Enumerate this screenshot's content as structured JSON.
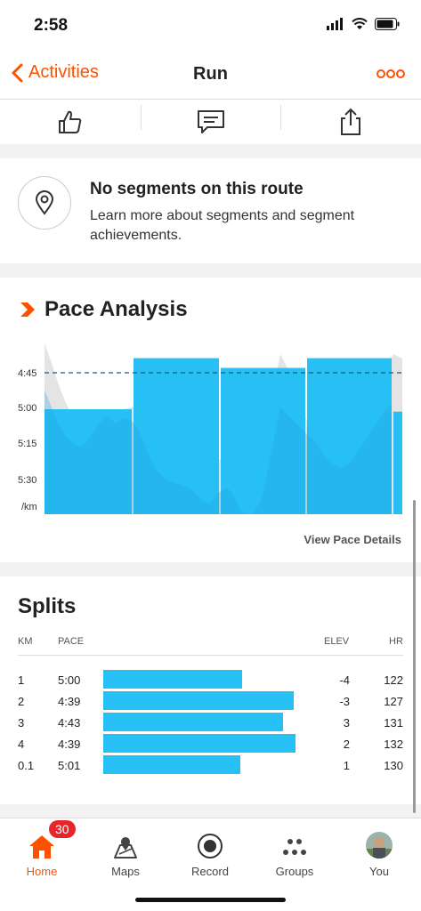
{
  "status_bar": {
    "time": "2:58"
  },
  "nav": {
    "back_label": "Activities",
    "title": "Run"
  },
  "segments": {
    "heading": "No segments on this route",
    "body": "Learn more about segments and segment achievements."
  },
  "pace_analysis": {
    "heading": "Pace Analysis",
    "view_details_label": "View Pace Details"
  },
  "chart_data": {
    "type": "bar",
    "title": "Pace Analysis",
    "y_tick_labels": [
      "4:45",
      "5:00",
      "5:15",
      "5:30",
      "/km"
    ],
    "average_pace_line": "4:45",
    "categories": [
      "1",
      "2",
      "3",
      "4",
      "0.1"
    ],
    "series": [
      {
        "values": [
          "5:00",
          "4:39",
          "4:43",
          "4:39",
          "5:01"
        ]
      }
    ],
    "colors": {
      "bars": "#26c0f5",
      "elevation": "#e4e4e4",
      "avg_line": "#1d5a7a"
    }
  },
  "splits": {
    "heading": "Splits",
    "columns": {
      "km": "KM",
      "pace": "PACE",
      "elev": "ELEV",
      "hr": "HR"
    },
    "rows": [
      {
        "km": "1",
        "pace": "5:00",
        "elev": "-4",
        "hr": "122",
        "pace_fraction": 0.68
      },
      {
        "km": "2",
        "pace": "4:39",
        "elev": "-3",
        "hr": "127",
        "pace_fraction": 0.93
      },
      {
        "km": "3",
        "pace": "4:43",
        "elev": "3",
        "hr": "131",
        "pace_fraction": 0.88
      },
      {
        "km": "4",
        "pace": "4:39",
        "elev": "2",
        "hr": "132",
        "pace_fraction": 0.94
      },
      {
        "km": "0.1",
        "pace": "5:01",
        "elev": "1",
        "hr": "130",
        "pace_fraction": 0.67
      }
    ]
  },
  "tabbar": {
    "badge": "30",
    "tabs": [
      {
        "label": "Home",
        "icon": "home-icon",
        "active": true
      },
      {
        "label": "Maps",
        "icon": "maps-icon"
      },
      {
        "label": "Record",
        "icon": "record-icon"
      },
      {
        "label": "Groups",
        "icon": "groups-icon"
      },
      {
        "label": "You",
        "icon": "avatar"
      }
    ]
  },
  "colors": {
    "accent": "#fc5200",
    "bar": "#26c0f5",
    "badge": "#e8252b"
  }
}
